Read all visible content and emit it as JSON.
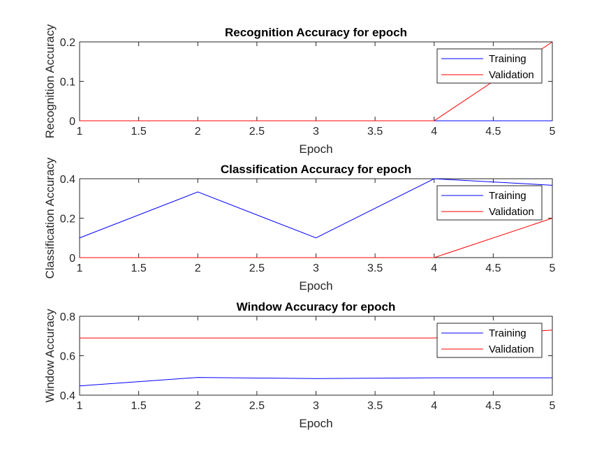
{
  "chart_data": [
    {
      "type": "line",
      "title": "Recognition Accuracy for epoch",
      "xlabel": "Epoch",
      "ylabel": "Recognition Accuracy",
      "xlim": [
        1,
        5
      ],
      "ylim": [
        0,
        0.2
      ],
      "xticks": [
        "1",
        "1.5",
        "2",
        "2.5",
        "3",
        "3.5",
        "4",
        "4.5",
        "5"
      ],
      "yticks": [
        "0",
        "0.1",
        "0.2"
      ],
      "legend_position": "top-right",
      "series": [
        {
          "name": "Training",
          "color": "#0000ff",
          "x": [
            1,
            2,
            3,
            4,
            5
          ],
          "y": [
            0,
            0,
            0,
            0,
            0
          ]
        },
        {
          "name": "Validation",
          "color": "#ff0000",
          "x": [
            1,
            2,
            3,
            4,
            5
          ],
          "y": [
            0,
            0,
            0,
            0,
            0.2
          ]
        }
      ]
    },
    {
      "type": "line",
      "title": "Classification Accuracy for epoch",
      "xlabel": "Epoch",
      "ylabel": "Classification Accuracy",
      "xlim": [
        1,
        5
      ],
      "ylim": [
        0,
        0.4
      ],
      "xticks": [
        "1",
        "1.5",
        "2",
        "2.5",
        "3",
        "3.5",
        "4",
        "4.5",
        "5"
      ],
      "yticks": [
        "0",
        "0.2",
        "0.4"
      ],
      "legend_position": "top-right",
      "series": [
        {
          "name": "Training",
          "color": "#0000ff",
          "x": [
            1,
            2,
            3,
            4,
            5
          ],
          "y": [
            0.1,
            0.333,
            0.1,
            0.4,
            0.367
          ]
        },
        {
          "name": "Validation",
          "color": "#ff0000",
          "x": [
            1,
            2,
            3,
            4,
            5
          ],
          "y": [
            0,
            0,
            0,
            0,
            0.2
          ]
        }
      ]
    },
    {
      "type": "line",
      "title": "Window Accuracy for epoch",
      "xlabel": "Epoch",
      "ylabel": "Window Accuracy",
      "xlim": [
        1,
        5
      ],
      "ylim": [
        0.4,
        0.8
      ],
      "xticks": [
        "1",
        "1.5",
        "2",
        "2.5",
        "3",
        "3.5",
        "4",
        "4.5",
        "5"
      ],
      "yticks": [
        "0.4",
        "0.6",
        "0.8"
      ],
      "legend_position": "top-right",
      "series": [
        {
          "name": "Training",
          "color": "#0000ff",
          "x": [
            1,
            2,
            3,
            4,
            5
          ],
          "y": [
            0.447,
            0.49,
            0.484,
            0.488,
            0.488
          ]
        },
        {
          "name": "Validation",
          "color": "#ff0000",
          "x": [
            1,
            2,
            3,
            4,
            5
          ],
          "y": [
            0.69,
            0.69,
            0.69,
            0.69,
            0.73
          ]
        }
      ]
    }
  ]
}
